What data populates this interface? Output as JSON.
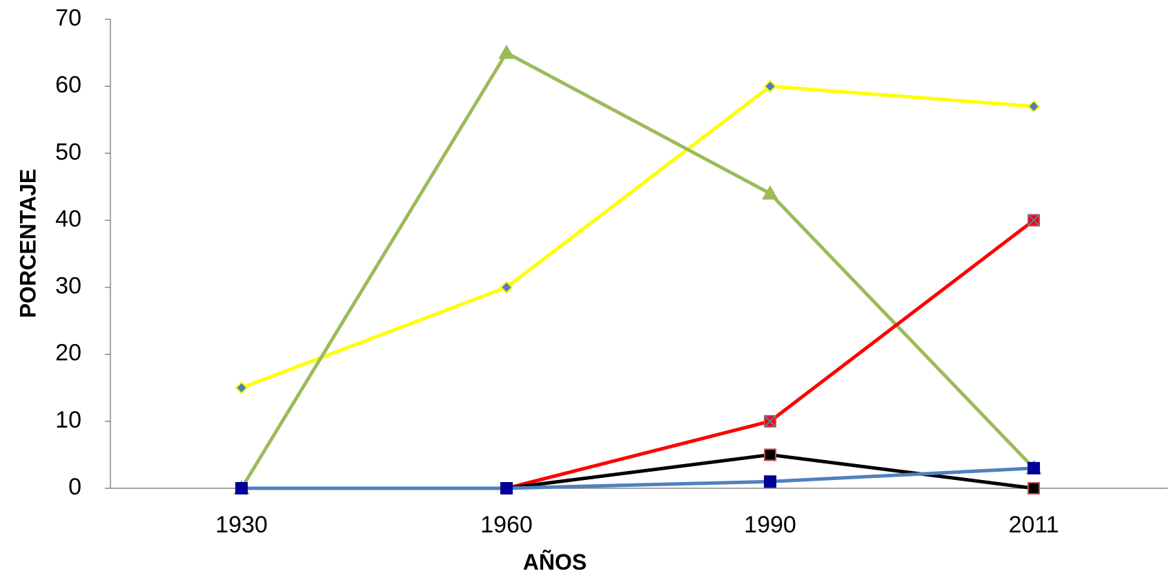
{
  "chart_data": {
    "type": "line",
    "title": "",
    "xlabel": "AÑOS",
    "ylabel": "PORCENTAJE",
    "categories": [
      "1930",
      "1960",
      "1990",
      "2011"
    ],
    "ylim": [
      0,
      70
    ],
    "yticks": [
      0,
      10,
      20,
      30,
      40,
      50,
      60,
      70
    ],
    "grid": false,
    "legend": "none",
    "series": [
      {
        "values": [
          15,
          30,
          60,
          57
        ],
        "color": "#FFFF00",
        "marker": "diamond",
        "marker_color": "#4F81BD"
      },
      {
        "values": [
          0,
          65,
          44,
          3
        ],
        "color": "#9BBB59",
        "marker": "triangle",
        "marker_color": "#9BBB59"
      },
      {
        "values": [
          0,
          0,
          10,
          40
        ],
        "color": "#FF0000",
        "marker": "x-square",
        "marker_color": "#FF0000"
      },
      {
        "values": [
          0,
          0,
          5,
          0
        ],
        "color": "#000000",
        "marker": "square",
        "marker_color": "#000000"
      },
      {
        "values": [
          0,
          0,
          1,
          3
        ],
        "color": "#4F81BD",
        "marker": "square",
        "marker_color": "#000099"
      }
    ]
  }
}
